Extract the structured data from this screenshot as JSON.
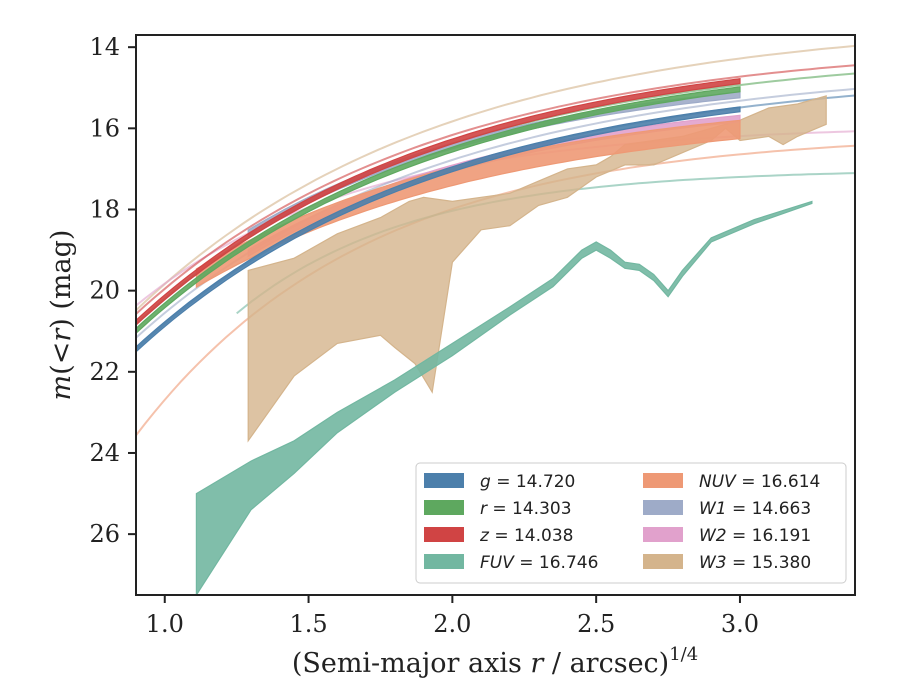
{
  "chart_data": {
    "type": "line",
    "xlabel_main": "(Semi-major axis ",
    "xlabel_var": "r",
    "xlabel_unit": " / arcsec)",
    "xlabel_exp": "1/4",
    "ylabel_main": "m",
    "ylabel_open": "(<",
    "ylabel_var": "r",
    "ylabel_close": ") (mag)",
    "xlim": [
      0.9,
      3.4
    ],
    "ylim": [
      27.5,
      13.7
    ],
    "y_inverted": true,
    "x_ticks": [
      {
        "v": 1.0,
        "label": "1.0"
      },
      {
        "v": 1.5,
        "label": "1.5"
      },
      {
        "v": 2.0,
        "label": "2.0"
      },
      {
        "v": 2.5,
        "label": "2.5"
      },
      {
        "v": 3.0,
        "label": "3.0"
      }
    ],
    "y_ticks": [
      {
        "v": 14,
        "label": "14"
      },
      {
        "v": 16,
        "label": "16"
      },
      {
        "v": 18,
        "label": "18"
      },
      {
        "v": 20,
        "label": "20"
      },
      {
        "v": 22,
        "label": "22"
      },
      {
        "v": 24,
        "label": "24"
      },
      {
        "v": 26,
        "label": "26"
      }
    ],
    "grid": false,
    "legend_position": "lower-right",
    "series": [
      {
        "key": "W3",
        "legend_var": "W3",
        "legend_value": "15.380",
        "color": "#d4b48c",
        "band_upper": [
          [
            1.29,
            19.5
          ],
          [
            1.45,
            19.2
          ],
          [
            1.6,
            18.6
          ],
          [
            1.75,
            18.2
          ],
          [
            1.85,
            17.8
          ],
          [
            1.9,
            17.7
          ],
          [
            2.0,
            17.8
          ],
          [
            2.1,
            17.7
          ],
          [
            2.2,
            17.6
          ],
          [
            2.3,
            17.3
          ],
          [
            2.4,
            17.0
          ],
          [
            2.5,
            16.9
          ],
          [
            2.55,
            16.7
          ],
          [
            2.6,
            16.4
          ],
          [
            2.7,
            16.3
          ],
          [
            2.8,
            16.2
          ],
          [
            2.9,
            16.0
          ],
          [
            3.0,
            15.8
          ],
          [
            3.1,
            15.5
          ],
          [
            3.2,
            15.4
          ],
          [
            3.3,
            15.2
          ]
        ],
        "band_lower": [
          [
            3.3,
            15.9
          ],
          [
            3.2,
            16.2
          ],
          [
            3.15,
            16.4
          ],
          [
            3.1,
            16.2
          ],
          [
            3.0,
            16.3
          ],
          [
            2.95,
            16.0
          ],
          [
            2.9,
            16.3
          ],
          [
            2.8,
            16.6
          ],
          [
            2.7,
            16.9
          ],
          [
            2.6,
            16.9
          ],
          [
            2.5,
            17.2
          ],
          [
            2.4,
            17.7
          ],
          [
            2.3,
            17.9
          ],
          [
            2.2,
            18.4
          ],
          [
            2.1,
            18.5
          ],
          [
            2.0,
            19.3
          ],
          [
            1.93,
            22.5
          ],
          [
            1.87,
            21.8
          ],
          [
            1.8,
            21.4
          ],
          [
            1.75,
            21.1
          ],
          [
            1.6,
            21.3
          ],
          [
            1.45,
            22.1
          ],
          [
            1.29,
            23.7
          ]
        ],
        "line_x": [
          0.9,
          3.4
        ],
        "line_a": 13.3,
        "line_b": 16.9,
        "line_c": 0.95
      },
      {
        "key": "W2",
        "legend_var": "W2",
        "legend_value": "16.191",
        "color": "#e1a1cc",
        "band_x": [
          1.29,
          3.0
        ],
        "band_a": 15.1,
        "band_b": 15.4,
        "band_c": 1.05,
        "band_w": 0.16,
        "line_x": [
          0.9,
          3.4
        ],
        "line_a": 15.9,
        "line_b": 14.4,
        "line_c": 1.3
      },
      {
        "key": "W1",
        "legend_var": "W1",
        "legend_value": "14.663",
        "color": "#9eabc8",
        "band_x": [
          1.29,
          3.0
        ],
        "band_a": 14.5,
        "band_b": 15.8,
        "band_c": 1.05,
        "band_w": 0.14,
        "line_x": [
          0.9,
          3.4
        ],
        "line_a": 14.4,
        "line_b": 15.9,
        "line_c": 0.95
      },
      {
        "key": "NUV",
        "legend_var": "NUV",
        "legend_value": "16.614",
        "color": "#ee9975",
        "band_x": [
          1.11,
          3.0
        ],
        "band_a": 15.3,
        "band_b": 12.6,
        "band_c": 0.95,
        "band_w": 0.45,
        "line_x": [
          0.9,
          3.4
        ],
        "line_a": 16.1,
        "line_b": 23.0,
        "line_c": 1.25
      },
      {
        "key": "FUV",
        "legend_var": "FUV",
        "legend_value": "16.746",
        "color": "#72b7a1",
        "band_upper": [
          [
            1.11,
            25.0
          ],
          [
            1.3,
            24.2
          ],
          [
            1.45,
            23.7
          ],
          [
            1.6,
            23.0
          ],
          [
            1.8,
            22.2
          ],
          [
            2.0,
            21.3
          ],
          [
            2.2,
            20.4
          ],
          [
            2.35,
            19.7
          ],
          [
            2.45,
            19.0
          ],
          [
            2.5,
            18.8
          ],
          [
            2.55,
            19.0
          ],
          [
            2.6,
            19.3
          ],
          [
            2.65,
            19.35
          ],
          [
            2.7,
            19.6
          ],
          [
            2.75,
            20.0
          ],
          [
            2.8,
            19.5
          ],
          [
            2.9,
            18.7
          ],
          [
            3.05,
            18.25
          ],
          [
            3.25,
            17.8
          ]
        ],
        "band_lower": [
          [
            3.25,
            17.85
          ],
          [
            3.05,
            18.35
          ],
          [
            2.9,
            18.8
          ],
          [
            2.8,
            19.65
          ],
          [
            2.75,
            20.15
          ],
          [
            2.7,
            19.75
          ],
          [
            2.65,
            19.5
          ],
          [
            2.6,
            19.45
          ],
          [
            2.55,
            19.2
          ],
          [
            2.5,
            19.0
          ],
          [
            2.45,
            19.2
          ],
          [
            2.35,
            19.9
          ],
          [
            2.2,
            20.6
          ],
          [
            2.0,
            21.6
          ],
          [
            1.8,
            22.5
          ],
          [
            1.6,
            23.5
          ],
          [
            1.45,
            24.5
          ],
          [
            1.3,
            25.4
          ],
          [
            1.11,
            27.5
          ]
        ],
        "line_x": [
          1.25,
          3.4
        ],
        "line_a": 17.0,
        "line_b": 28.0,
        "line_c": 1.65
      },
      {
        "key": "g",
        "legend_var": "g",
        "legend_value": "14.720",
        "color": "#4c7fab",
        "band_x": [
          0.9,
          3.0
        ],
        "band_a": 14.6,
        "band_b": 16.1,
        "band_c": 0.95,
        "band_w": 0.12,
        "line_x": [
          0.9,
          3.4
        ],
        "line_a": 14.55,
        "line_b": 16.2,
        "line_c": 0.95
      },
      {
        "key": "r",
        "legend_var": "r",
        "legend_value": "14.303",
        "color": "#5ea85f",
        "band_x": [
          0.9,
          3.0
        ],
        "band_a": 14.1,
        "band_b": 16.2,
        "band_c": 0.95,
        "band_w": 0.12,
        "line_x": [
          0.9,
          3.4
        ],
        "line_a": 14.05,
        "line_b": 16.2,
        "line_c": 0.97
      },
      {
        "key": "z",
        "legend_var": "z",
        "legend_value": "14.038",
        "color": "#d04444",
        "band_x": [
          0.9,
          3.0
        ],
        "band_a": 13.9,
        "band_b": 16.2,
        "band_c": 0.95,
        "band_w": 0.12,
        "line_x": [
          0.9,
          3.4
        ],
        "line_a": 13.85,
        "line_b": 16.1,
        "line_c": 0.97
      }
    ],
    "legend_columns": [
      [
        "g",
        "r",
        "z",
        "FUV"
      ],
      [
        "NUV",
        "W1",
        "W2",
        "W3"
      ]
    ]
  }
}
